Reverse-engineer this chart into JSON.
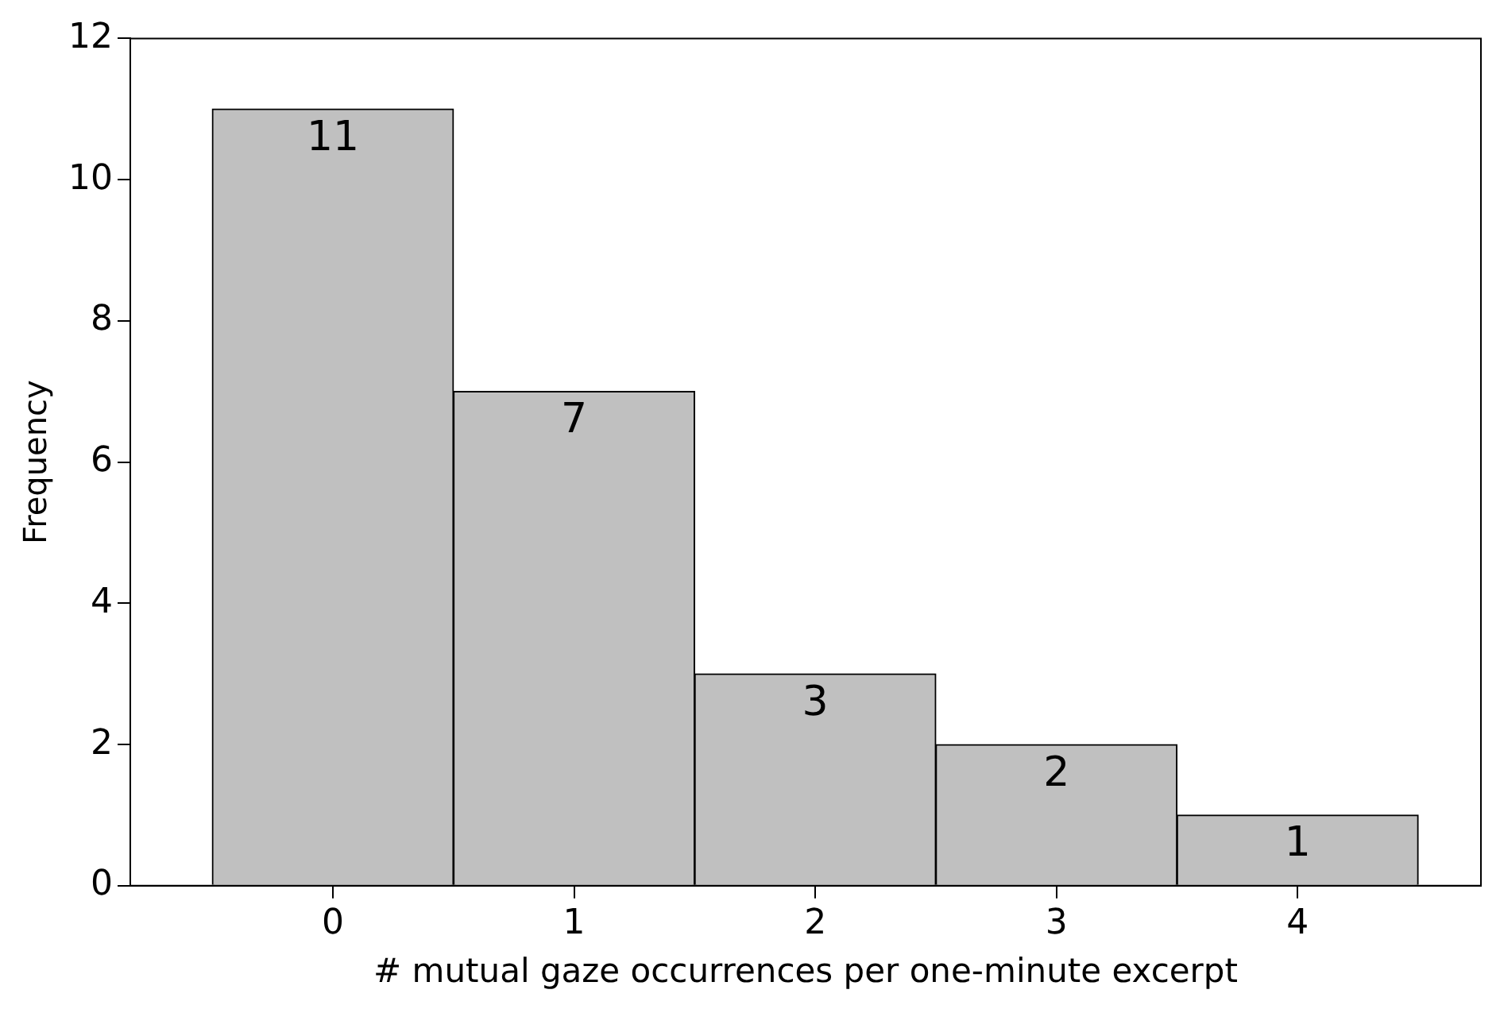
{
  "chart_data": {
    "type": "histogram",
    "xlabel": "# mutual gaze occurrences per one-minute excerpt",
    "ylabel": "Frequency",
    "bins": [
      -0.5,
      0.5,
      1.5,
      2.5,
      3.5,
      4.5
    ],
    "values": [
      11,
      7,
      3,
      2,
      1
    ],
    "color": "#c0c0c0",
    "xlim": [
      -0.84,
      4.76
    ],
    "xticks": [
      0,
      1,
      2,
      3,
      4
    ],
    "ylim": [
      0,
      12
    ],
    "yticks": [
      0,
      2,
      4,
      6,
      8,
      10,
      12
    ],
    "data_labels": true,
    "grid": false,
    "legend": false
  }
}
